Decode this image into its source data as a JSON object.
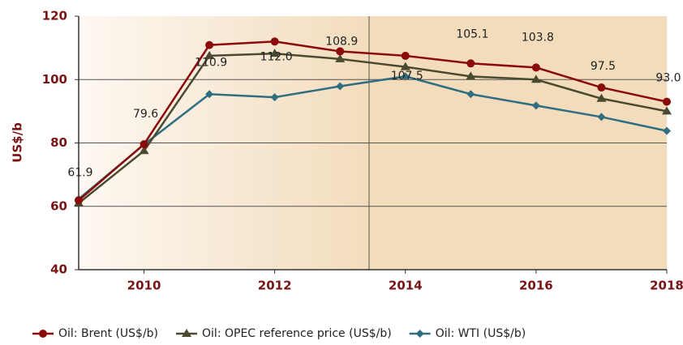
{
  "chart_data": {
    "type": "line",
    "y_label": "US$/b",
    "x": [
      2009,
      2010,
      2011,
      2012,
      2013,
      2014,
      2015,
      2016,
      2017,
      2018
    ],
    "series": [
      {
        "name": "Oil: Brent (US$/b)",
        "color": "#8b0a0a",
        "marker": "circle",
        "values": [
          61.9,
          79.6,
          110.9,
          112.0,
          108.9,
          107.5,
          105.1,
          103.8,
          97.5,
          93.0
        ],
        "value_labels": [
          "61.9",
          "79.6",
          "110.9",
          "112.0",
          "108.9",
          "107.5",
          "105.1",
          "103.8",
          "97.5",
          "93.0"
        ]
      },
      {
        "name": "Oil: OPEC reference price (US$/b)",
        "color": "#4a4a30",
        "marker": "triangle",
        "values": [
          61.0,
          77.5,
          107.5,
          108.2,
          106.5,
          104.0,
          101.0,
          100.0,
          94.0,
          90.0
        ]
      },
      {
        "name": "Oil: WTI (US$/b)",
        "color": "#2e6e80",
        "marker": "diamond",
        "values": [
          62.3,
          79.5,
          95.4,
          94.4,
          97.9,
          101.0,
          95.4,
          91.8,
          88.2,
          83.8
        ]
      }
    ],
    "xlim": [
      2009,
      2018
    ],
    "xticks": [
      2010,
      2012,
      2014,
      2016,
      2018
    ],
    "ylim": [
      40,
      120
    ],
    "yticks": [
      40,
      60,
      80,
      100,
      120
    ],
    "grid": true
  }
}
